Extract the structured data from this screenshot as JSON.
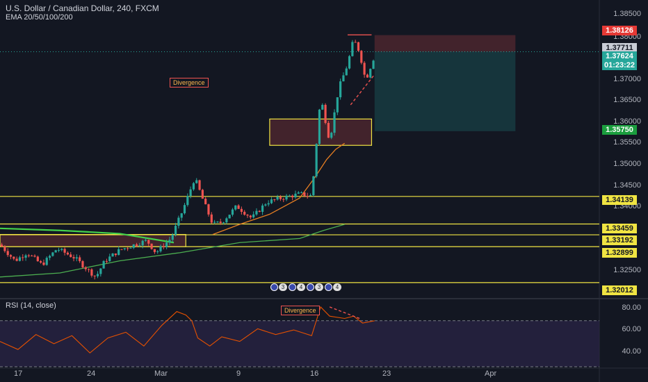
{
  "header": {
    "title": "U.S. Dollar / Canadian Dollar, 240, FXCM",
    "indicator": "EMA 20/50/100/200",
    "rsi": "RSI (14, close)"
  },
  "colors": {
    "background": "#131722",
    "level_line": "#f0e442",
    "ema_short": "#e67e22",
    "ema_long": "#4caf50",
    "rsi_line": "#e65100",
    "rsi_band": "#2a2445",
    "bull": "#26a69a",
    "bear": "#ef5350"
  },
  "price_axis": {
    "ticks": [
      "1.38500",
      "1.38000",
      "1.37000",
      "1.36500",
      "1.36000",
      "1.35500",
      "1.35000",
      "1.34500",
      "1.34000",
      "1.32500"
    ]
  },
  "rsi_axis": {
    "ticks": [
      "80.00",
      "60.00",
      "40.00"
    ]
  },
  "time_axis": {
    "ticks": [
      "17",
      "24",
      "Mar",
      "9",
      "16",
      "23",
      "Apr"
    ]
  },
  "price_tags": [
    {
      "value": "1.38126",
      "bg": "#e53935",
      "fg": "#ffffff"
    },
    {
      "value": "1.37711",
      "bg": "#c9cdd6",
      "fg": "#131722"
    },
    {
      "value": "1.37624",
      "bg": "#26a69a",
      "fg": "#ffffff"
    },
    {
      "value": "01:23:22",
      "bg": "#26a69a",
      "fg": "#ffffff"
    },
    {
      "value": "1.35750",
      "bg": "#1b9e3e",
      "fg": "#ffffff"
    },
    {
      "value": "1.34139",
      "bg": "#f0e442",
      "fg": "#131722"
    },
    {
      "value": "1.33459",
      "bg": "#f0e442",
      "fg": "#131722"
    },
    {
      "value": "1.33192",
      "bg": "#f0e442",
      "fg": "#131722"
    },
    {
      "value": "1.32899",
      "bg": "#f0e442",
      "fg": "#131722"
    },
    {
      "value": "1.32012",
      "bg": "#f0e442",
      "fg": "#131722"
    }
  ],
  "annotations": {
    "divergence_1": "Divergence",
    "divergence_2": "Divergence"
  },
  "event_badges": [
    "3",
    "4",
    "3",
    "4"
  ],
  "chart_data": {
    "type": "candlestick",
    "title": "U.S. Dollar / Canadian Dollar, 240, FXCM",
    "y_range": [
      1.3165,
      1.3885
    ],
    "horizontal_levels": [
      1.34139,
      1.33459,
      1.33192,
      1.32899,
      1.32012
    ],
    "current_price": 1.37624,
    "prior_close": 1.37711,
    "stop": 1.38126,
    "target": 1.3575,
    "ohlc_path": [
      [
        0.0,
        1.3295
      ],
      [
        2.5,
        1.3255
      ],
      [
        4.5,
        1.3275
      ],
      [
        7.0,
        1.3245
      ],
      [
        9.5,
        1.3285
      ],
      [
        12.5,
        1.3262
      ],
      [
        14.5,
        1.3235
      ],
      [
        16.0,
        1.3215
      ],
      [
        17.5,
        1.3255
      ],
      [
        20.0,
        1.3282
      ],
      [
        22.5,
        1.3295
      ],
      [
        24.5,
        1.3305
      ],
      [
        26.0,
        1.3275
      ],
      [
        28.5,
        1.331
      ],
      [
        30.5,
        1.338
      ],
      [
        32.5,
        1.346
      ],
      [
        34.0,
        1.34
      ],
      [
        35.5,
        1.3345
      ],
      [
        37.0,
        1.335
      ],
      [
        39.5,
        1.339
      ],
      [
        42.0,
        1.336
      ],
      [
        44.5,
        1.34
      ],
      [
        47.0,
        1.341
      ],
      [
        50.0,
        1.342
      ],
      [
        52.0,
        1.3415
      ],
      [
        53.5,
        1.366
      ],
      [
        55.0,
        1.355
      ],
      [
        56.5,
        1.368
      ],
      [
        58.0,
        1.374
      ],
      [
        59.0,
        1.3802
      ],
      [
        60.0,
        1.377
      ],
      [
        61.0,
        1.37
      ],
      [
        62.5,
        1.3762
      ]
    ],
    "ema_short": [
      [
        35.5,
        1.332
      ],
      [
        40.0,
        1.3345
      ],
      [
        45.0,
        1.337
      ],
      [
        50.0,
        1.341
      ],
      [
        52.5,
        1.346
      ],
      [
        54.5,
        1.3505
      ],
      [
        56.0,
        1.353
      ],
      [
        57.5,
        1.3545
      ]
    ],
    "ema_long": [
      [
        0.0,
        1.3215
      ],
      [
        10.0,
        1.3225
      ],
      [
        20.0,
        1.3255
      ],
      [
        30.0,
        1.3275
      ],
      [
        40.0,
        1.33
      ],
      [
        50.0,
        1.331
      ],
      [
        54.0,
        1.333
      ],
      [
        57.5,
        1.3345
      ]
    ],
    "ema_green_declining": [
      [
        0.0,
        1.3335
      ],
      [
        10.0,
        1.333
      ],
      [
        20.0,
        1.3322
      ],
      [
        29.0,
        1.33
      ]
    ],
    "zones": [
      {
        "name": "supply-box",
        "x": [
          45.0,
          62.0
        ],
        "y": [
          1.354,
          1.3605
        ],
        "fill": "#ef5350",
        "stroke": "#f0e442"
      },
      {
        "name": "demand-box",
        "x": [
          0.0,
          31.0
        ],
        "y": [
          1.329,
          1.332
        ],
        "fill": "#ef5350",
        "stroke": "#f0e442"
      },
      {
        "name": "risk-zone",
        "x": [
          62.5,
          86.0
        ],
        "y": [
          1.3771,
          1.3812
        ],
        "fill": "#ef5350"
      },
      {
        "name": "reward-zone",
        "x": [
          62.5,
          86.0
        ],
        "y": [
          1.3575,
          1.3771
        ],
        "fill": "#26a69a"
      }
    ],
    "rsi": {
      "range": [
        30,
        88
      ],
      "overbought": 70,
      "oversold": 30,
      "path": [
        [
          0.0,
          52
        ],
        [
          3.0,
          45
        ],
        [
          6.0,
          58
        ],
        [
          9.0,
          50
        ],
        [
          12.0,
          57
        ],
        [
          15.0,
          42
        ],
        [
          18.0,
          55
        ],
        [
          21.0,
          60
        ],
        [
          24.0,
          48
        ],
        [
          27.0,
          66
        ],
        [
          29.5,
          78
        ],
        [
          31.0,
          75
        ],
        [
          32.0,
          70
        ],
        [
          33.0,
          55
        ],
        [
          35.0,
          48
        ],
        [
          37.0,
          56
        ],
        [
          40.0,
          52
        ],
        [
          43.0,
          63
        ],
        [
          46.0,
          58
        ],
        [
          49.0,
          62
        ],
        [
          52.0,
          57
        ],
        [
          53.5,
          82
        ],
        [
          55.0,
          74
        ],
        [
          57.5,
          72
        ],
        [
          59.0,
          74
        ],
        [
          60.5,
          68
        ],
        [
          62.5,
          70
        ]
      ]
    }
  }
}
